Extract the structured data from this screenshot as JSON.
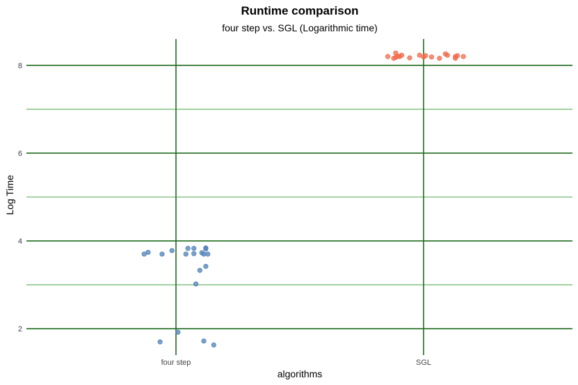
{
  "chart_data": {
    "type": "scatter",
    "title": "Runtime comparison",
    "subtitle": "four step vs. SGL (Logarithmic time)",
    "xlabel": "algorithms",
    "ylabel": "Log Time",
    "categories": [
      "four step",
      "SGL"
    ],
    "ylim": [
      1.4,
      8.6
    ],
    "yticks": [
      2,
      4,
      6,
      8
    ],
    "minor_yticks": [
      3,
      5,
      7
    ],
    "grid": true,
    "legend": "none",
    "colors": {
      "major_grid": "#1f6b1f",
      "minor_grid": "#8cc68c"
    },
    "series": [
      {
        "category": "four step",
        "color": "#4f81b7",
        "points": [
          {
            "x": -0.16,
            "y": 3.7
          },
          {
            "x": -0.14,
            "y": 3.74
          },
          {
            "x": -0.07,
            "y": 3.7
          },
          {
            "x": -0.02,
            "y": 3.78
          },
          {
            "x": 0.05,
            "y": 3.7
          },
          {
            "x": 0.06,
            "y": 3.83
          },
          {
            "x": 0.09,
            "y": 3.71
          },
          {
            "x": 0.09,
            "y": 3.83
          },
          {
            "x": 0.13,
            "y": 3.73
          },
          {
            "x": 0.14,
            "y": 3.7
          },
          {
            "x": 0.15,
            "y": 3.84
          },
          {
            "x": 0.15,
            "y": 3.82
          },
          {
            "x": 0.16,
            "y": 3.7
          },
          {
            "x": 0.15,
            "y": 3.42
          },
          {
            "x": 0.12,
            "y": 3.33
          },
          {
            "x": 0.1,
            "y": 3.02
          },
          {
            "x": -0.08,
            "y": 1.7
          },
          {
            "x": 0.01,
            "y": 1.92
          },
          {
            "x": 0.14,
            "y": 1.72
          },
          {
            "x": 0.19,
            "y": 1.63
          }
        ]
      },
      {
        "category": "SGL",
        "color": "#f26a4b",
        "points": [
          {
            "x": -0.18,
            "y": 8.2
          },
          {
            "x": -0.15,
            "y": 8.16
          },
          {
            "x": -0.14,
            "y": 8.28
          },
          {
            "x": -0.14,
            "y": 8.18
          },
          {
            "x": -0.13,
            "y": 8.21
          },
          {
            "x": -0.12,
            "y": 8.2
          },
          {
            "x": -0.11,
            "y": 8.23
          },
          {
            "x": -0.07,
            "y": 8.17
          },
          {
            "x": -0.02,
            "y": 8.23
          },
          {
            "x": 0.0,
            "y": 8.19
          },
          {
            "x": 0.01,
            "y": 8.22
          },
          {
            "x": 0.04,
            "y": 8.19
          },
          {
            "x": 0.08,
            "y": 8.16
          },
          {
            "x": 0.11,
            "y": 8.26
          },
          {
            "x": 0.12,
            "y": 8.23
          },
          {
            "x": 0.16,
            "y": 8.16
          },
          {
            "x": 0.16,
            "y": 8.2
          },
          {
            "x": 0.17,
            "y": 8.22
          },
          {
            "x": 0.2,
            "y": 8.2
          }
        ]
      }
    ]
  }
}
